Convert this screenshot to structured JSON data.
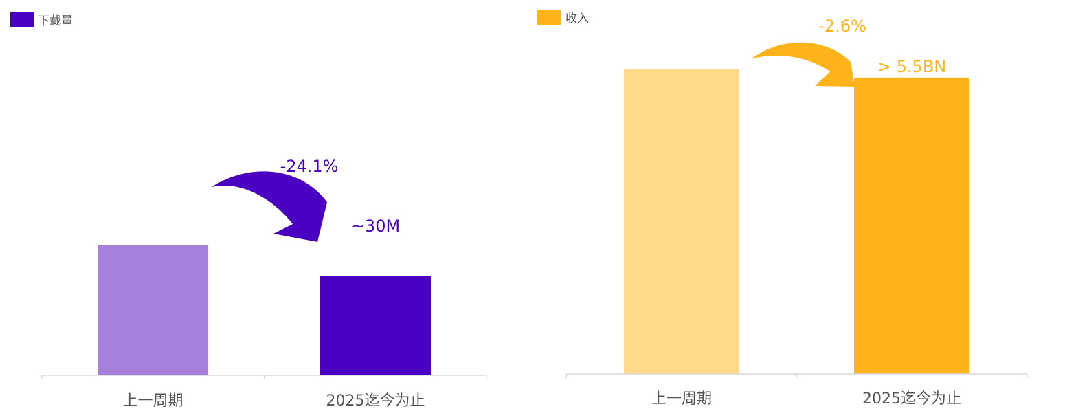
{
  "chart_data": [
    {
      "type": "bar",
      "legend": "下载量",
      "categories": [
        "上一周期",
        "2025迄今为止"
      ],
      "values": [
        39.5,
        30
      ],
      "colors": [
        "#a47fdc",
        "#4b00c1"
      ],
      "legend_color": "#4b00c1",
      "value_label": "~30M",
      "change_label": "-24.1%",
      "ylim": [
        0,
        90
      ]
    },
    {
      "type": "bar",
      "legend": "收入",
      "categories": [
        "上一周期",
        "2025迄今为止"
      ],
      "values": [
        5.65,
        5.5
      ],
      "colors": [
        "#ffd98a",
        "#ffb31a"
      ],
      "legend_color": "#ffb31a",
      "value_label": "> 5.5BN",
      "change_label": "-2.6%",
      "ylim": [
        0,
        5.65
      ]
    }
  ]
}
